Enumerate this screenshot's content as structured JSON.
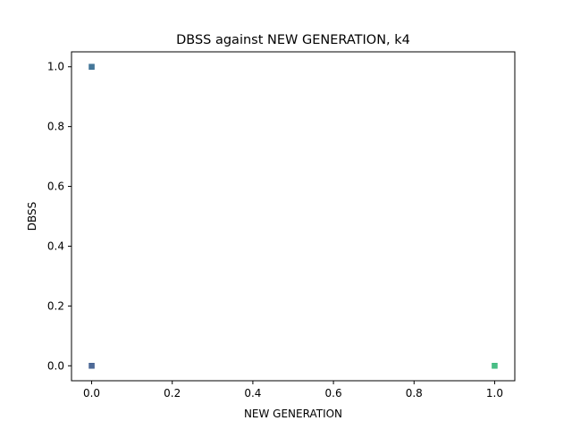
{
  "chart_data": {
    "type": "scatter",
    "title": "DBSS against NEW GENERATION, k4",
    "xlabel": "NEW GENERATION",
    "ylabel": "DBSS",
    "xlim": [
      -0.05,
      1.05
    ],
    "ylim": [
      -0.05,
      1.05
    ],
    "xticks": [
      "0.0",
      "0.2",
      "0.4",
      "0.6",
      "0.8",
      "1.0"
    ],
    "yticks": [
      "0.0",
      "0.2",
      "0.4",
      "0.6",
      "0.8",
      "1.0"
    ],
    "grid": false,
    "legend": "none",
    "points": [
      {
        "x": 0.0,
        "y": 1.0,
        "color": "#31688e"
      },
      {
        "x": 0.0,
        "y": 0.0,
        "color": "#3b5a8c"
      },
      {
        "x": 1.0,
        "y": 0.0,
        "color": "#35b779"
      }
    ]
  }
}
